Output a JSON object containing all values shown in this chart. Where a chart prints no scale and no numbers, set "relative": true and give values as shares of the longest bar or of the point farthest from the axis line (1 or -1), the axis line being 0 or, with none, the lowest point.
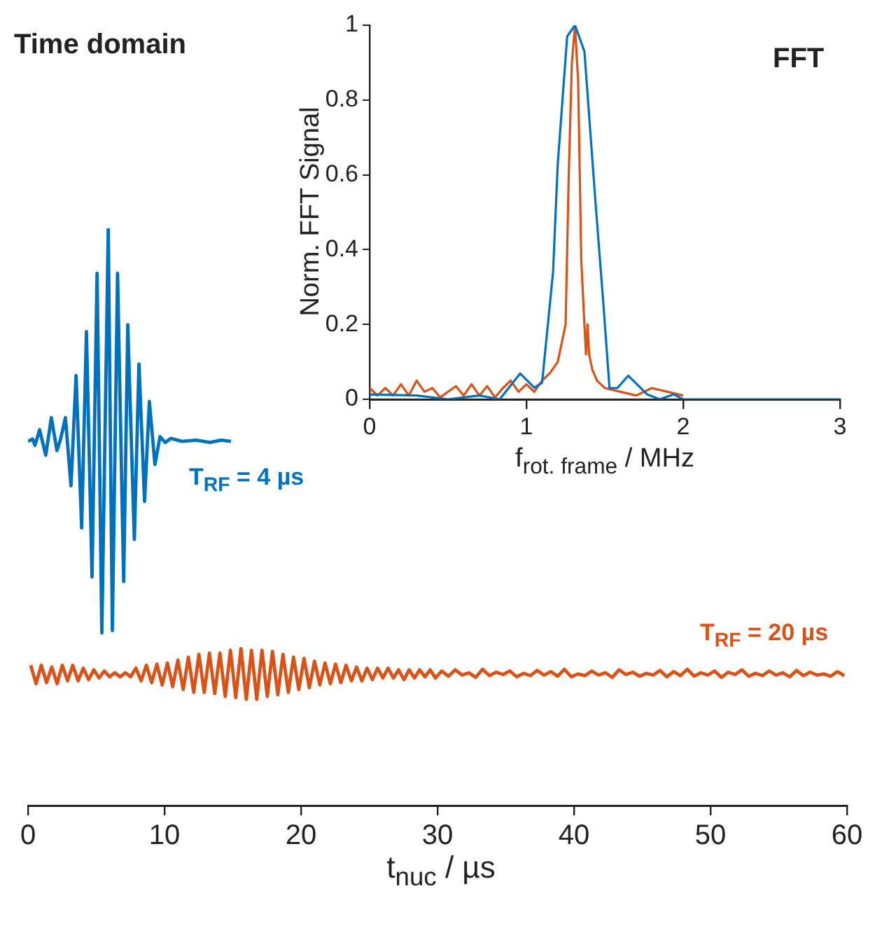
{
  "chart_data": [
    {
      "type": "line",
      "title": "Time domain",
      "xlabel": "t$_{nuc}$ / µs",
      "relative": true,
      "xlim": [
        0,
        60
      ],
      "xticks": [
        0,
        10,
        20,
        30,
        40,
        50,
        60
      ],
      "grid": false,
      "legend": false,
      "series": [
        {
          "name": "T$_{RF}$ = 4 µs",
          "color": "#0072bd",
          "x": [
            0,
            0.34,
            0.51,
            0.85,
            1.3,
            1.71,
            2.12,
            2.39,
            2.74,
            3.15,
            3.52,
            3.93,
            4.28,
            4.69,
            5.06,
            5.41,
            5.88,
            6.18,
            6.56,
            7.01,
            7.31,
            7.79,
            8.13,
            8.54,
            8.89,
            9.3,
            9.67,
            10.05,
            10.46,
            11.28,
            12.31,
            13.33,
            14.15,
            14.87
          ],
          "values": [
            0.631,
            0.635,
            0.624,
            0.651,
            0.607,
            0.672,
            0.615,
            0.635,
            0.672,
            0.554,
            0.745,
            0.481,
            0.821,
            0.396,
            0.922,
            0.299,
            1.0,
            0.303,
            0.922,
            0.388,
            0.833,
            0.461,
            0.765,
            0.527,
            0.7,
            0.591,
            0.639,
            0.629,
            0.636,
            0.631,
            0.633,
            0.629,
            0.633,
            0.631
          ]
        },
        {
          "name": "T$_{RF}$ = 20 µs",
          "color": "#d95319",
          "x": [
            0.2,
            0.59,
            0.97,
            1.36,
            1.74,
            2.13,
            2.51,
            2.9,
            3.28,
            3.67,
            4.05,
            4.44,
            4.82,
            5.21,
            5.59,
            5.98,
            6.36,
            6.75,
            7.13,
            7.52,
            7.9,
            8.29,
            8.67,
            9.06,
            9.44,
            9.83,
            10.21,
            10.6,
            10.98,
            11.37,
            11.75,
            12.14,
            12.52,
            12.91,
            13.29,
            13.68,
            14.06,
            14.45,
            14.83,
            15.22,
            15.6,
            15.99,
            16.37,
            16.76,
            17.14,
            17.53,
            17.91,
            18.3,
            18.68,
            19.07,
            19.45,
            19.84,
            20.22,
            20.61,
            20.99,
            21.38,
            21.76,
            22.15,
            22.53,
            22.92,
            23.3,
            23.69,
            24.07,
            24.46,
            24.84,
            25.23,
            25.61,
            26.0,
            26.38,
            26.77,
            27.15,
            27.54,
            27.92,
            28.31,
            28.69,
            29.08,
            29.46,
            29.85,
            30.3,
            30.8,
            31.3,
            31.8,
            32.3,
            32.8,
            33.3,
            33.8,
            34.3,
            34.8,
            35.3,
            35.8,
            36.3,
            36.8,
            37.3,
            37.8,
            38.3,
            38.8,
            39.3,
            39.8,
            40.3,
            40.8,
            41.3,
            41.8,
            42.3,
            42.8,
            43.3,
            43.8,
            44.3,
            44.8,
            45.3,
            45.8,
            46.3,
            46.8,
            47.3,
            47.8,
            48.3,
            48.8,
            49.3,
            49.8,
            50.3,
            50.8,
            51.3,
            51.8,
            52.3,
            52.8,
            53.3,
            53.8,
            54.3,
            54.8,
            55.3,
            55.8,
            56.3,
            56.8,
            57.3,
            57.8,
            58.3,
            58.8,
            59.3,
            59.8
          ],
          "values": [
            0.243,
            0.211,
            0.243,
            0.213,
            0.24,
            0.211,
            0.243,
            0.216,
            0.243,
            0.216,
            0.238,
            0.218,
            0.235,
            0.221,
            0.233,
            0.223,
            0.23,
            0.223,
            0.23,
            0.223,
            0.238,
            0.216,
            0.243,
            0.213,
            0.245,
            0.209,
            0.247,
            0.206,
            0.252,
            0.201,
            0.257,
            0.196,
            0.262,
            0.196,
            0.264,
            0.194,
            0.264,
            0.189,
            0.269,
            0.187,
            0.272,
            0.184,
            0.269,
            0.184,
            0.269,
            0.189,
            0.267,
            0.192,
            0.262,
            0.196,
            0.257,
            0.201,
            0.255,
            0.204,
            0.25,
            0.209,
            0.247,
            0.211,
            0.245,
            0.213,
            0.243,
            0.216,
            0.24,
            0.216,
            0.238,
            0.218,
            0.238,
            0.221,
            0.238,
            0.221,
            0.235,
            0.218,
            0.235,
            0.221,
            0.235,
            0.223,
            0.235,
            0.221,
            0.233,
            0.224,
            0.235,
            0.226,
            0.23,
            0.222,
            0.236,
            0.225,
            0.231,
            0.227,
            0.233,
            0.223,
            0.229,
            0.225,
            0.234,
            0.226,
            0.232,
            0.224,
            0.236,
            0.223,
            0.228,
            0.225,
            0.233,
            0.226,
            0.23,
            0.222,
            0.235,
            0.227,
            0.231,
            0.224,
            0.229,
            0.226,
            0.234,
            0.223,
            0.232,
            0.225,
            0.236,
            0.224,
            0.23,
            0.226,
            0.233,
            0.222,
            0.231,
            0.227,
            0.235,
            0.224,
            0.229,
            0.225,
            0.233,
            0.226,
            0.23,
            0.223,
            0.234,
            0.225,
            0.231,
            0.226,
            0.228,
            0.224,
            0.232,
            0.225
          ]
        }
      ]
    },
    {
      "type": "line",
      "title": "FFT",
      "xlabel": "f$_{rot. frame}$ / MHz",
      "ylabel": "Norm. FFT Signal",
      "xlim": [
        0,
        3
      ],
      "ylim": [
        0,
        1
      ],
      "xticks": [
        0,
        1,
        2,
        3
      ],
      "yticks": [
        0,
        0.2,
        0.4,
        0.6,
        0.8,
        1
      ],
      "grid": false,
      "legend": false,
      "series": [
        {
          "color": "#0072bd",
          "x": [
            0,
            0.3,
            0.5,
            0.7,
            0.83,
            0.96,
            1.05,
            1.1,
            1.17,
            1.2,
            1.26,
            1.31,
            1.37,
            1.44,
            1.49,
            1.53,
            1.58,
            1.65,
            1.77,
            1.85,
            1.94,
            2.0,
            2.5,
            3.0
          ],
          "values": [
            0.013,
            0.01,
            0,
            0.01,
            0,
            0.069,
            0.031,
            0.044,
            0.34,
            0.63,
            0.97,
            1.0,
            0.93,
            0.53,
            0.26,
            0.03,
            0.03,
            0.063,
            0.013,
            0,
            0.013,
            0,
            0,
            0
          ]
        },
        {
          "color": "#d95319",
          "x": [
            0,
            0.05,
            0.1,
            0.15,
            0.2,
            0.25,
            0.3,
            0.35,
            0.4,
            0.45,
            0.5,
            0.55,
            0.6,
            0.65,
            0.7,
            0.75,
            0.8,
            0.85,
            0.9,
            0.95,
            1.0,
            1.05,
            1.1,
            1.15,
            1.2,
            1.25,
            1.27,
            1.29,
            1.31,
            1.33,
            1.35,
            1.37,
            1.38,
            1.39,
            1.4,
            1.42,
            1.45,
            1.5,
            1.6,
            1.7,
            1.8,
            1.9,
            2.0
          ],
          "values": [
            0.03,
            0.01,
            0.03,
            0.01,
            0.04,
            0.01,
            0.05,
            0.02,
            0.03,
            0.005,
            0.02,
            0.035,
            0.01,
            0.04,
            0.01,
            0.035,
            0.005,
            0.03,
            0.05,
            0.02,
            0.04,
            0.02,
            0.05,
            0.07,
            0.1,
            0.2,
            0.6,
            0.9,
            1.0,
            0.85,
            0.37,
            0.2,
            0.12,
            0.2,
            0.12,
            0.08,
            0.05,
            0.03,
            0.02,
            0.01,
            0.03,
            0.02,
            0.01
          ]
        }
      ]
    }
  ]
}
